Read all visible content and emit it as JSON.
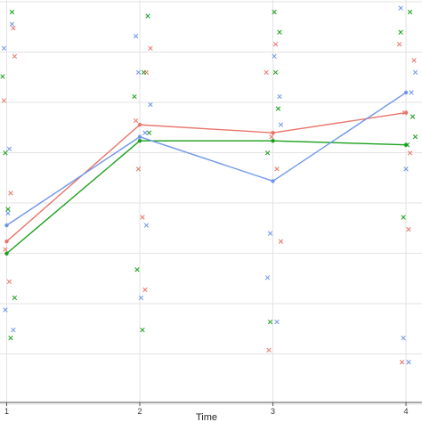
{
  "chart_data": {
    "type": "line",
    "title": "",
    "xlabel": "Time",
    "ylabel": "",
    "x": [
      1,
      2,
      3,
      4
    ],
    "xlim": [
      0.95,
      4.12
    ],
    "ylim": [
      0,
      1
    ],
    "x_tick_labels": [
      "1",
      "2",
      "3",
      "4"
    ],
    "grid": true,
    "colors": {
      "red": "#e8756b",
      "green": "#1aa01a",
      "blue": "#6f95ea",
      "grid": "#e3e3e3",
      "panel": "#ffffff"
    },
    "series": [
      {
        "color": "red",
        "values": [
          0.4,
          0.69,
          0.67,
          0.72
        ]
      },
      {
        "color": "green",
        "values": [
          0.37,
          0.65,
          0.65,
          0.64
        ]
      },
      {
        "color": "blue",
        "values": [
          0.44,
          0.66,
          0.55,
          0.77
        ]
      }
    ],
    "points": {
      "red": [
        [
          0.99,
          0.38
        ],
        [
          1.02,
          0.3
        ],
        [
          1.05,
          0.93
        ],
        [
          1.03,
          0.52
        ],
        [
          0.98,
          0.75
        ],
        [
          1.06,
          0.86
        ],
        [
          1.97,
          0.7
        ],
        [
          2.05,
          0.82
        ],
        [
          2.02,
          0.46
        ],
        [
          1.99,
          0.58
        ],
        [
          2.08,
          0.88
        ],
        [
          2.04,
          0.28
        ],
        [
          2.95,
          0.82
        ],
        [
          3.03,
          0.58
        ],
        [
          2.99,
          0.66
        ],
        [
          3.06,
          0.4
        ],
        [
          2.97,
          0.13
        ],
        [
          3.02,
          0.89
        ],
        [
          3.95,
          0.89
        ],
        [
          4.03,
          0.62
        ],
        [
          3.99,
          0.72
        ],
        [
          4.06,
          0.85
        ],
        [
          3.97,
          0.1
        ],
        [
          4.02,
          0.43
        ]
      ],
      "green": [
        [
          0.97,
          0.81
        ],
        [
          1.01,
          0.48
        ],
        [
          1.06,
          0.26
        ],
        [
          1.03,
          0.16
        ],
        [
          0.99,
          0.62
        ],
        [
          1.04,
          0.97
        ],
        [
          1.96,
          0.76
        ],
        [
          2.03,
          0.82
        ],
        [
          2.07,
          0.67
        ],
        [
          2.02,
          0.18
        ],
        [
          1.98,
          0.33
        ],
        [
          2.06,
          0.96
        ],
        [
          2.96,
          0.62
        ],
        [
          3.04,
          0.73
        ],
        [
          3.01,
          0.97
        ],
        [
          2.98,
          0.2
        ],
        [
          3.05,
          0.92
        ],
        [
          3.02,
          0.82
        ],
        [
          3.96,
          0.92
        ],
        [
          4.05,
          0.71
        ],
        [
          4.01,
          0.64
        ],
        [
          3.98,
          0.46
        ],
        [
          4.07,
          0.66
        ],
        [
          4.03,
          0.97
        ]
      ],
      "blue": [
        [
          0.98,
          0.88
        ],
        [
          1.02,
          0.63
        ],
        [
          1.05,
          0.18
        ],
        [
          0.99,
          0.23
        ],
        [
          1.04,
          0.94
        ],
        [
          1.01,
          0.47
        ],
        [
          1.97,
          0.91
        ],
        [
          2.04,
          0.67
        ],
        [
          2.01,
          0.26
        ],
        [
          2.08,
          0.74
        ],
        [
          1.99,
          0.82
        ],
        [
          2.05,
          0.44
        ],
        [
          2.96,
          0.31
        ],
        [
          3.05,
          0.76
        ],
        [
          3.01,
          0.86
        ],
        [
          2.98,
          0.42
        ],
        [
          3.06,
          0.69
        ],
        [
          3.03,
          0.2
        ],
        [
          3.96,
          0.98
        ],
        [
          4.04,
          0.77
        ],
        [
          4.0,
          0.58
        ],
        [
          4.07,
          0.82
        ],
        [
          3.98,
          0.16
        ],
        [
          4.02,
          0.1
        ]
      ]
    }
  }
}
